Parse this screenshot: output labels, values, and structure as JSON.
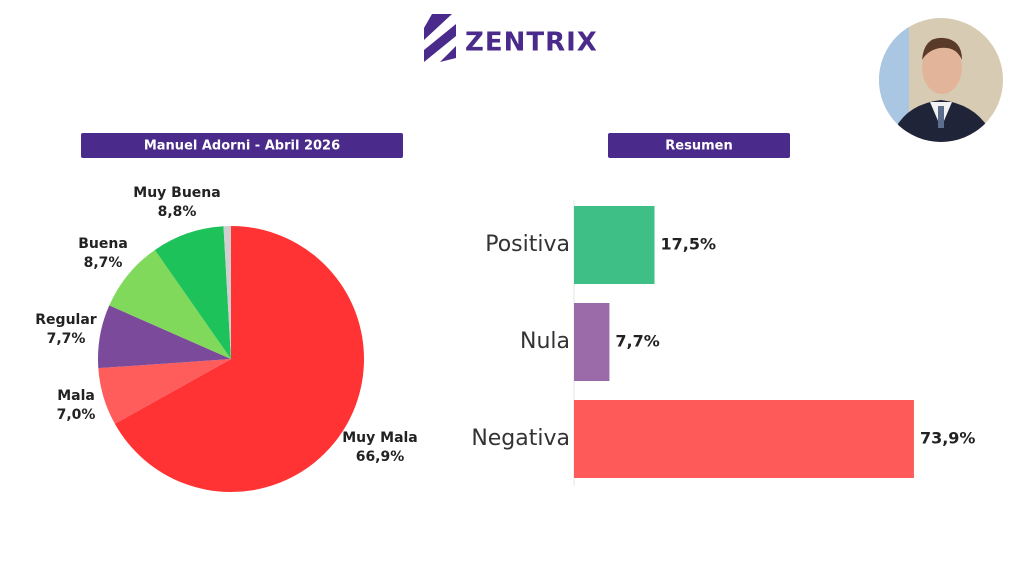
{
  "header": {
    "logo": "ZENTRIX"
  },
  "chart_data": [
    {
      "type": "pie",
      "title": "Manuel Adorni - Abril 2026",
      "categories": [
        "Muy Mala",
        "Mala",
        "Regular",
        "Buena",
        "Muy Buena",
        null
      ],
      "values": [
        66.9,
        7.0,
        7.7,
        8.7,
        8.8,
        0.9
      ],
      "value_labels": [
        "66,9%",
        "7,0%",
        "7,7%",
        "8,7%",
        "8,8%",
        null
      ],
      "colors": [
        "#ff3333",
        "#ff5c5c",
        "#7b4a9a",
        "#80d95a",
        "#1dc25a",
        "#cfcfcf"
      ]
    },
    {
      "type": "bar",
      "orientation": "horizontal",
      "title": "Resumen",
      "categories": [
        "Positiva",
        "Nula",
        "Negativa"
      ],
      "values": [
        17.5,
        7.7,
        73.9
      ],
      "value_labels": [
        "17,5%",
        "7,7%",
        "73,9%"
      ],
      "colors": [
        "#3dbf86",
        "#9b6aa8",
        "#ff5a5a"
      ]
    }
  ]
}
